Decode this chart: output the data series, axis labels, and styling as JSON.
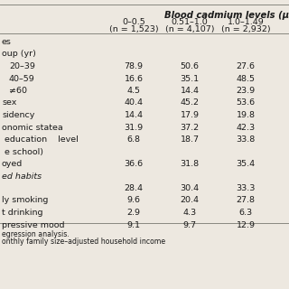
{
  "bg_color": "#ede8e0",
  "font_color": "#1a1a1a",
  "title_text": "Blood cadmium levels (μg/L",
  "col1_header": "0–0.5",
  "col1_sub": "(n = 1,523)",
  "col2_header": "0.51–1.0",
  "col2_sub": "(n = 4,107)",
  "col3_header": "1.0–1.49",
  "col3_sub": "(n = 2,932)",
  "rows": [
    {
      "label": "es",
      "v1": null,
      "v2": null,
      "v3": null,
      "italic": false,
      "indent": 0
    },
    {
      "label": "oup (yr)",
      "v1": null,
      "v2": null,
      "v3": null,
      "italic": false,
      "indent": 0
    },
    {
      "label": "20–39",
      "v1": "78.9",
      "v2": "50.6",
      "v3": "27.6",
      "italic": false,
      "indent": 1
    },
    {
      "label": "40–59",
      "v1": "16.6",
      "v2": "35.1",
      "v3": "48.5",
      "italic": false,
      "indent": 1
    },
    {
      "label": "≠60",
      "v1": "4.5",
      "v2": "14.4",
      "v3": "23.9",
      "italic": false,
      "indent": 1
    },
    {
      "label": "sex",
      "v1": "40.4",
      "v2": "45.2",
      "v3": "53.6",
      "italic": false,
      "indent": 0
    },
    {
      "label": "sidency",
      "v1": "14.4",
      "v2": "17.9",
      "v3": "19.8",
      "italic": false,
      "indent": 0
    },
    {
      "label": "onomic statea",
      "v1": "31.9",
      "v2": "37.2",
      "v3": "42.3",
      "italic": false,
      "indent": 0
    },
    {
      "label": " education    level",
      "v1": "6.8",
      "v2": "18.7",
      "v3": "33.8",
      "italic": false,
      "indent": 0
    },
    {
      "label": " e school)",
      "v1": null,
      "v2": null,
      "v3": null,
      "italic": false,
      "indent": 0
    },
    {
      "label": "oyed",
      "v1": "36.6",
      "v2": "31.8",
      "v3": "35.4",
      "italic": false,
      "indent": 0
    },
    {
      "label": "ed habits",
      "v1": null,
      "v2": null,
      "v3": null,
      "italic": true,
      "indent": 0
    },
    {
      "label": "",
      "v1": "28.4",
      "v2": "30.4",
      "v3": "33.3",
      "italic": false,
      "indent": 0
    },
    {
      "label": "ly smoking",
      "v1": "9.6",
      "v2": "20.4",
      "v3": "27.8",
      "italic": false,
      "indent": 0
    },
    {
      "label": "t drinking",
      "v1": "2.9",
      "v2": "4.3",
      "v3": "6.3",
      "italic": false,
      "indent": 0
    },
    {
      "label": "pressive mood",
      "v1": "9.1",
      "v2": "9.7",
      "v3": "12.9",
      "italic": false,
      "indent": 0
    }
  ],
  "footnote1": "egression analysis.",
  "footnote2": "onthly family size–adjusted household income",
  "fs": 6.8,
  "hfs": 7.2
}
